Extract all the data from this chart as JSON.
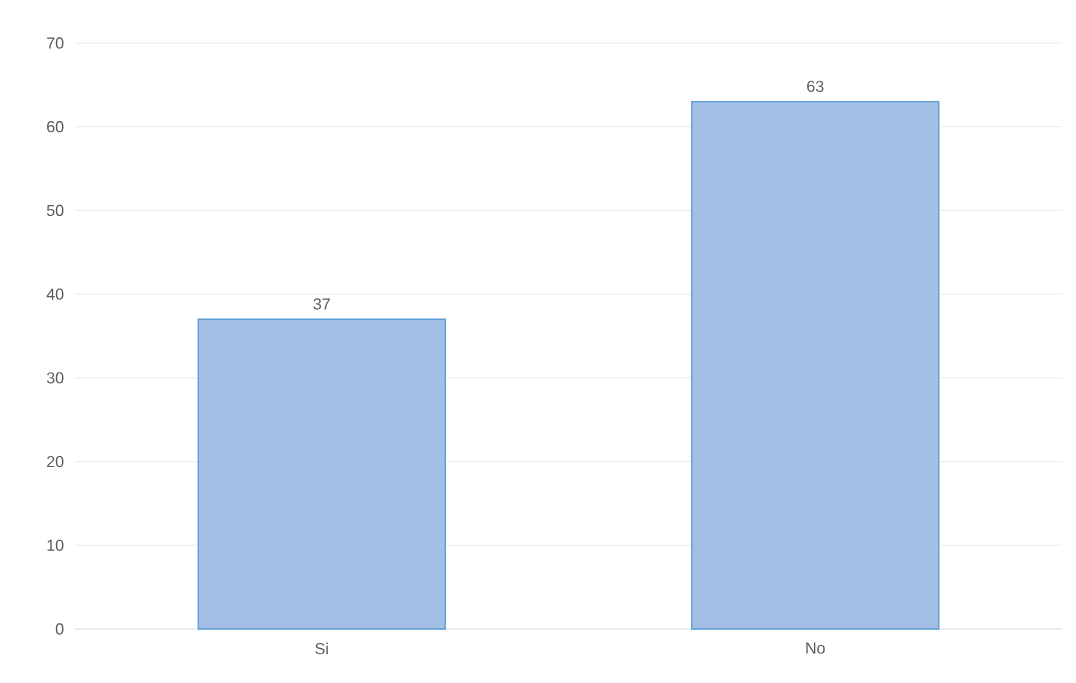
{
  "chart_data": {
    "type": "bar",
    "categories": [
      "Si",
      "No"
    ],
    "values": [
      37,
      63
    ],
    "color": "#a3bfe5",
    "data_labels": true,
    "ylim": [
      0,
      70
    ],
    "yticks": [
      0,
      10,
      20,
      30,
      40,
      50,
      60,
      70
    ],
    "grid": "y"
  }
}
